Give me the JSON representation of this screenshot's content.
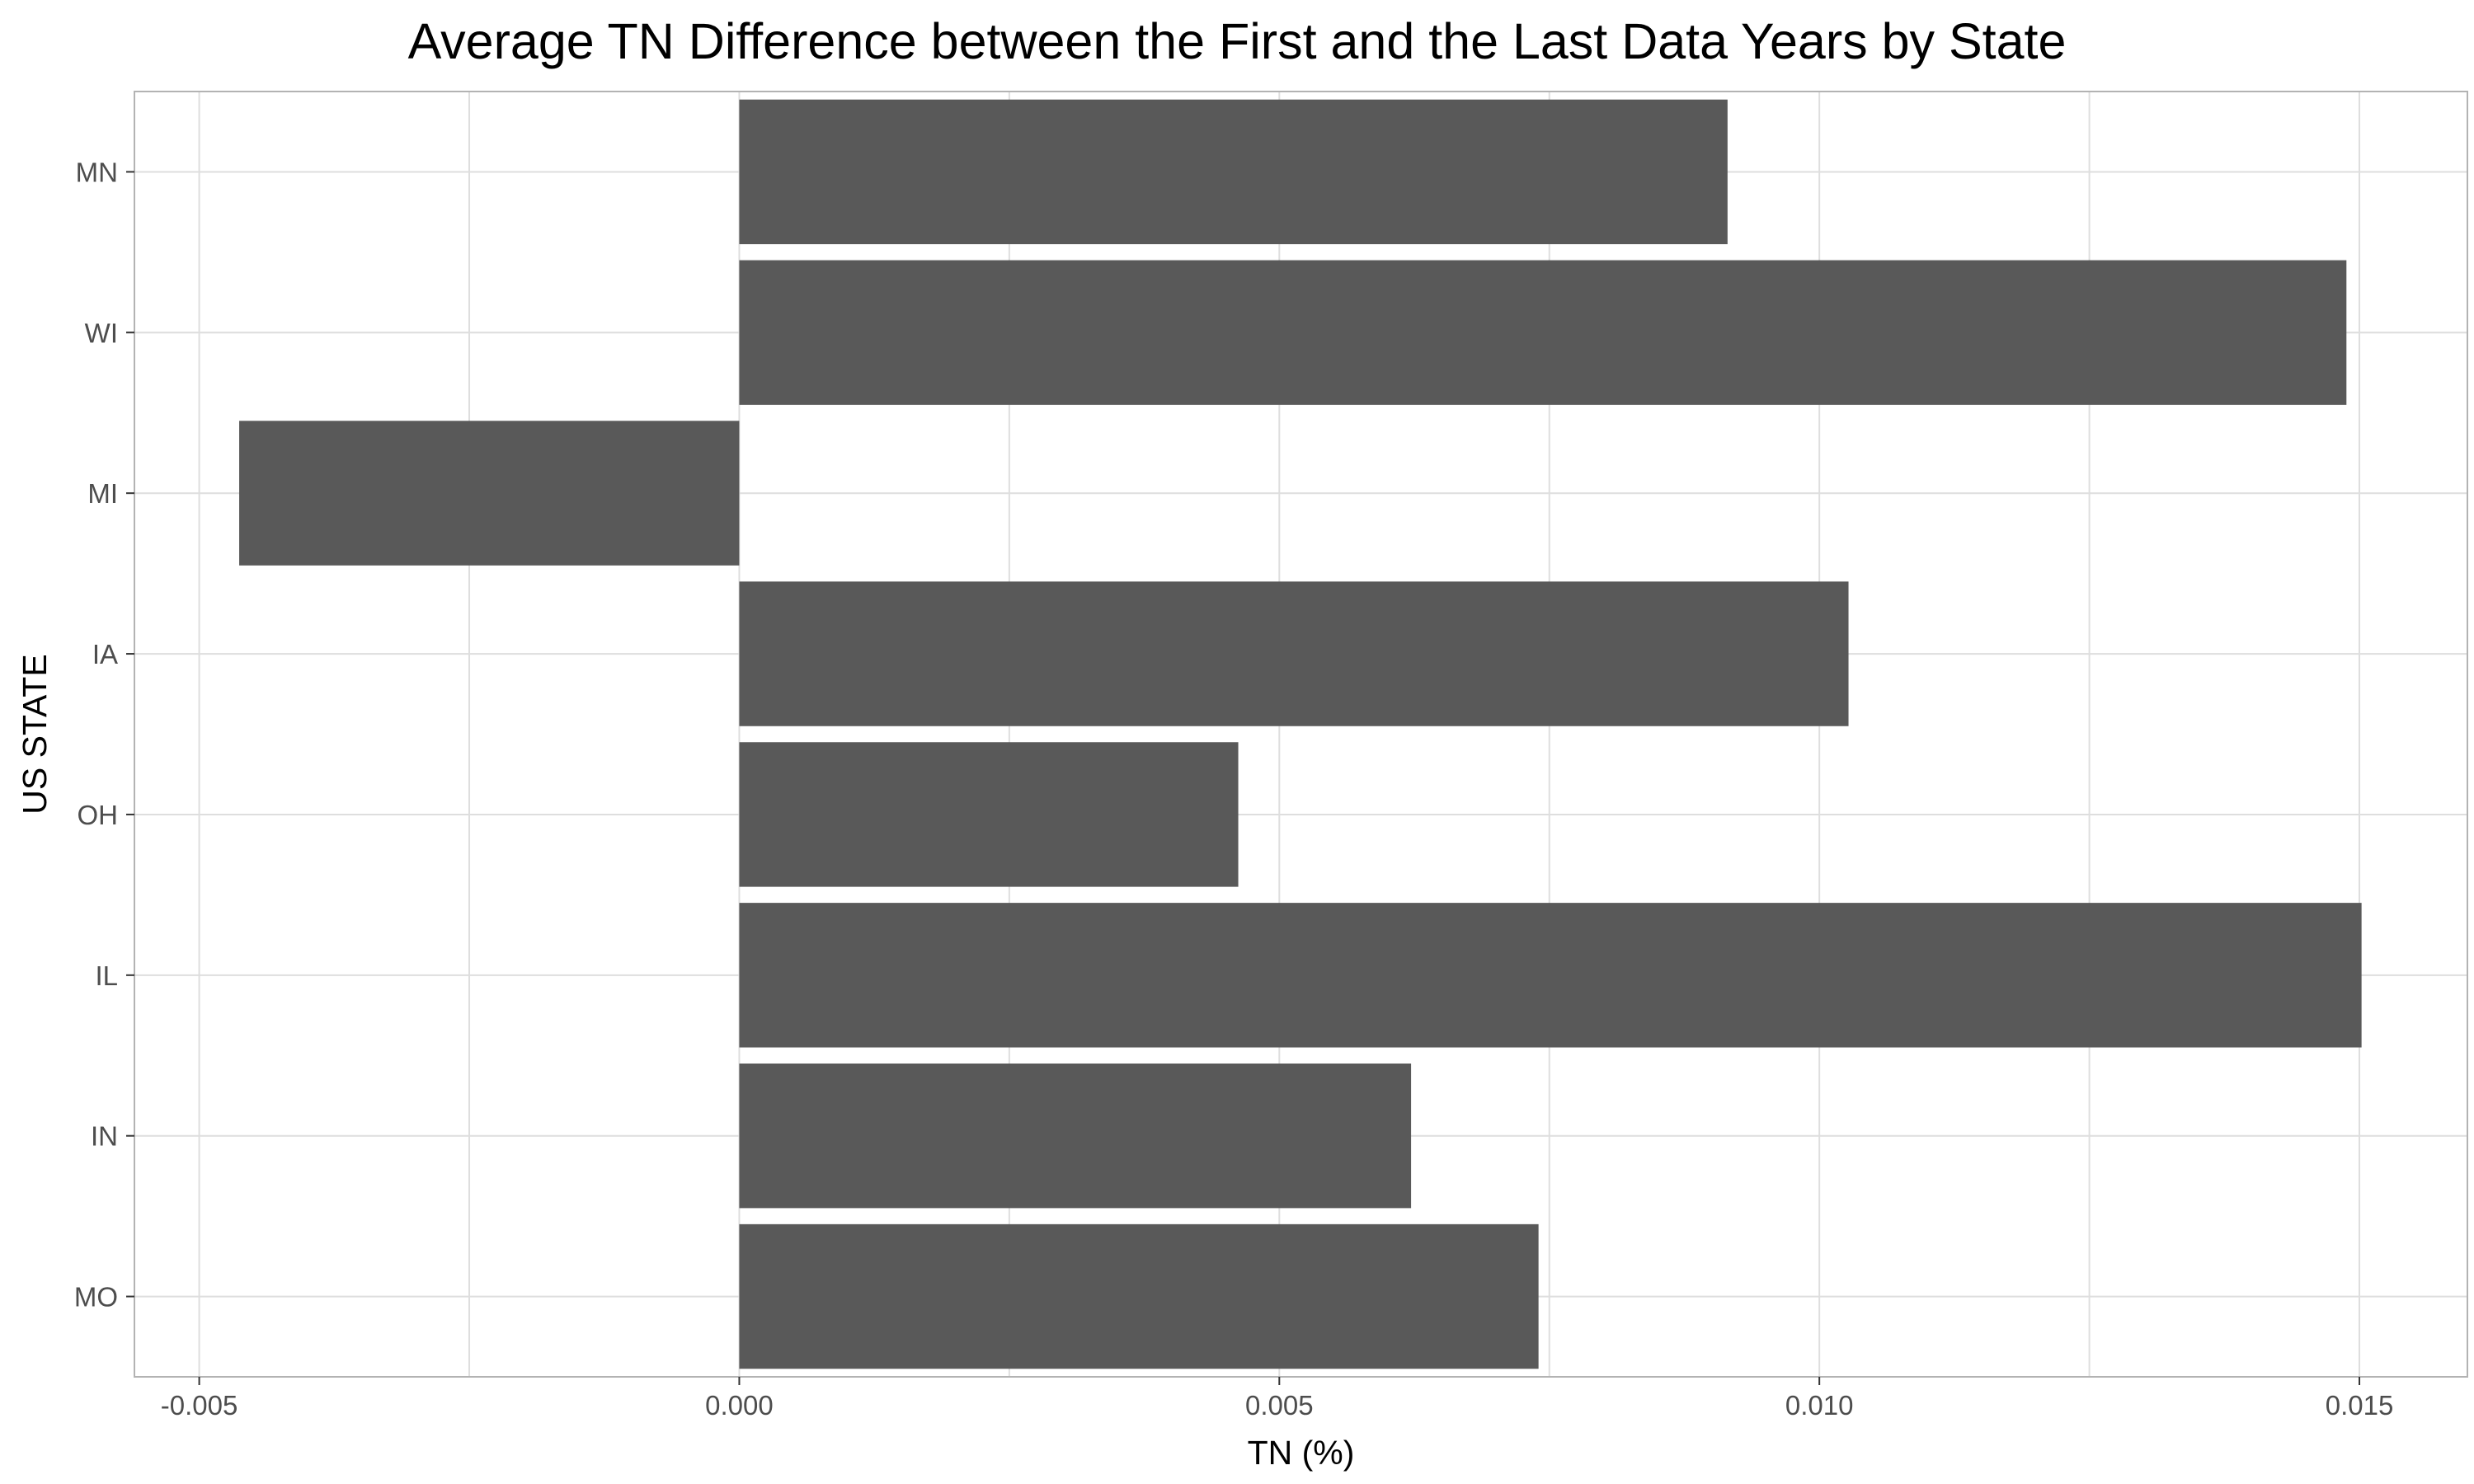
{
  "chart_data": {
    "type": "bar",
    "orientation": "horizontal",
    "title": "Average TN Difference between the First and the Last Data Years by State",
    "xlabel": "TN (%)",
    "ylabel": "US STATE",
    "categories": [
      "MN",
      "WI",
      "MI",
      "IA",
      "OH",
      "IL",
      "IN",
      "MO"
    ],
    "values": [
      0.00915,
      0.01488,
      -0.00463,
      0.01027,
      0.00462,
      0.01502,
      0.00622,
      0.0074
    ],
    "xlim": [
      -0.0056,
      0.016
    ],
    "xticks": [
      -0.005,
      0.0,
      0.005,
      0.01,
      0.015
    ],
    "xtick_labels": [
      "-0.005",
      "0.000",
      "0.005",
      "0.010",
      "0.015"
    ],
    "grid": true,
    "bar_color": "#595959",
    "grid_color": "#dedede",
    "panel_border_color": "#b3b3b3"
  }
}
